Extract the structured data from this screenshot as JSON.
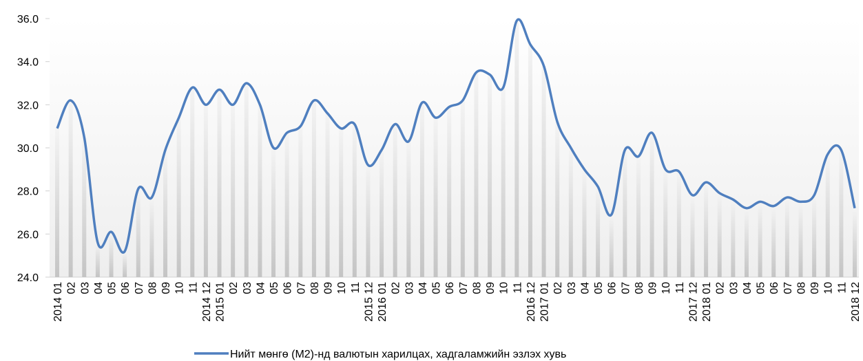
{
  "chart_data": {
    "type": "line",
    "categories": [
      "2014 01",
      "02",
      "03",
      "04",
      "05",
      "06",
      "07",
      "08",
      "09",
      "10",
      "11",
      "2014 12",
      "2015 01",
      "02",
      "03",
      "04",
      "05",
      "06",
      "07",
      "08",
      "09",
      "10",
      "11",
      "2015 12",
      "2016 01",
      "02",
      "03",
      "04",
      "05",
      "06",
      "07",
      "08",
      "09",
      "10",
      "11",
      "2016 12",
      "2017 01",
      "02",
      "03",
      "04",
      "05",
      "06",
      "07",
      "08",
      "09",
      "10",
      "11",
      "2017 12",
      "2018 01",
      "02",
      "03",
      "04",
      "05",
      "06",
      "07",
      "08",
      "09",
      "10",
      "11",
      "2018 12"
    ],
    "series": [
      {
        "name": "Нийт мөнгө (М2)-нд валютын харилцах, хадгаламжийн эзлэх хувь",
        "color": "#4f7fbf",
        "values": [
          30.9,
          32.2,
          30.5,
          25.6,
          26.1,
          25.2,
          28.1,
          27.7,
          29.9,
          31.4,
          32.8,
          32.0,
          32.7,
          32.0,
          33.0,
          32.0,
          30.0,
          30.7,
          31.0,
          32.2,
          31.6,
          30.9,
          31.1,
          29.2,
          29.9,
          31.1,
          30.3,
          32.1,
          31.4,
          31.9,
          32.2,
          33.5,
          33.4,
          32.8,
          35.9,
          34.8,
          33.8,
          31.2,
          30.0,
          29.0,
          28.2,
          26.9,
          29.9,
          29.6,
          30.7,
          29.0,
          28.9,
          27.8,
          28.4,
          27.9,
          27.6,
          27.2,
          27.5,
          27.3,
          27.7,
          27.5,
          27.8,
          29.7,
          29.9,
          27.2
        ]
      }
    ],
    "ylim": [
      24,
      36
    ],
    "yticks": [
      {
        "value": 24,
        "label": "24.0"
      },
      {
        "value": 26,
        "label": "26.0"
      },
      {
        "value": 28,
        "label": "28.0"
      },
      {
        "value": 30,
        "label": "30.0"
      },
      {
        "value": 32,
        "label": "32.0"
      },
      {
        "value": 34,
        "label": "34.0"
      },
      {
        "value": 36,
        "label": "36.0"
      }
    ]
  }
}
